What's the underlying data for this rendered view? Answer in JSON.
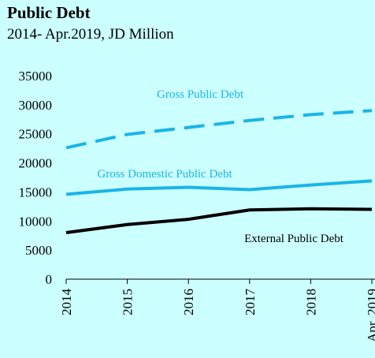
{
  "header": {
    "title": "Public Debt",
    "subtitle": "2014- Apr.2019, JD Million"
  },
  "chart_data": {
    "type": "line",
    "title": "Public Debt",
    "subtitle": "2014- Apr.2019, JD Million",
    "categories": [
      "2014",
      "2015",
      "2016",
      "2017",
      "2018",
      "Apr. 2019"
    ],
    "yticks": [
      "0",
      "5000",
      "10000",
      "15000",
      "20000",
      "25000",
      "30000",
      "35000"
    ],
    "ylim": [
      0,
      35000
    ],
    "grid": false,
    "legend": "inline labels",
    "series": [
      {
        "name": "Gross Public Debt",
        "values": [
          22600,
          24900,
          26100,
          27300,
          28300,
          29000
        ],
        "color": "#1ab4e8",
        "dash": true
      },
      {
        "name": "Gross Domestic Public Debt",
        "values": [
          14600,
          15500,
          15800,
          15400,
          16200,
          16900
        ],
        "color": "#1ab4e8",
        "dash": false
      },
      {
        "name": "External Public Debt",
        "values": [
          8000,
          9400,
          10300,
          11900,
          12100,
          12000
        ],
        "color": "#000000",
        "dash": false
      }
    ]
  }
}
